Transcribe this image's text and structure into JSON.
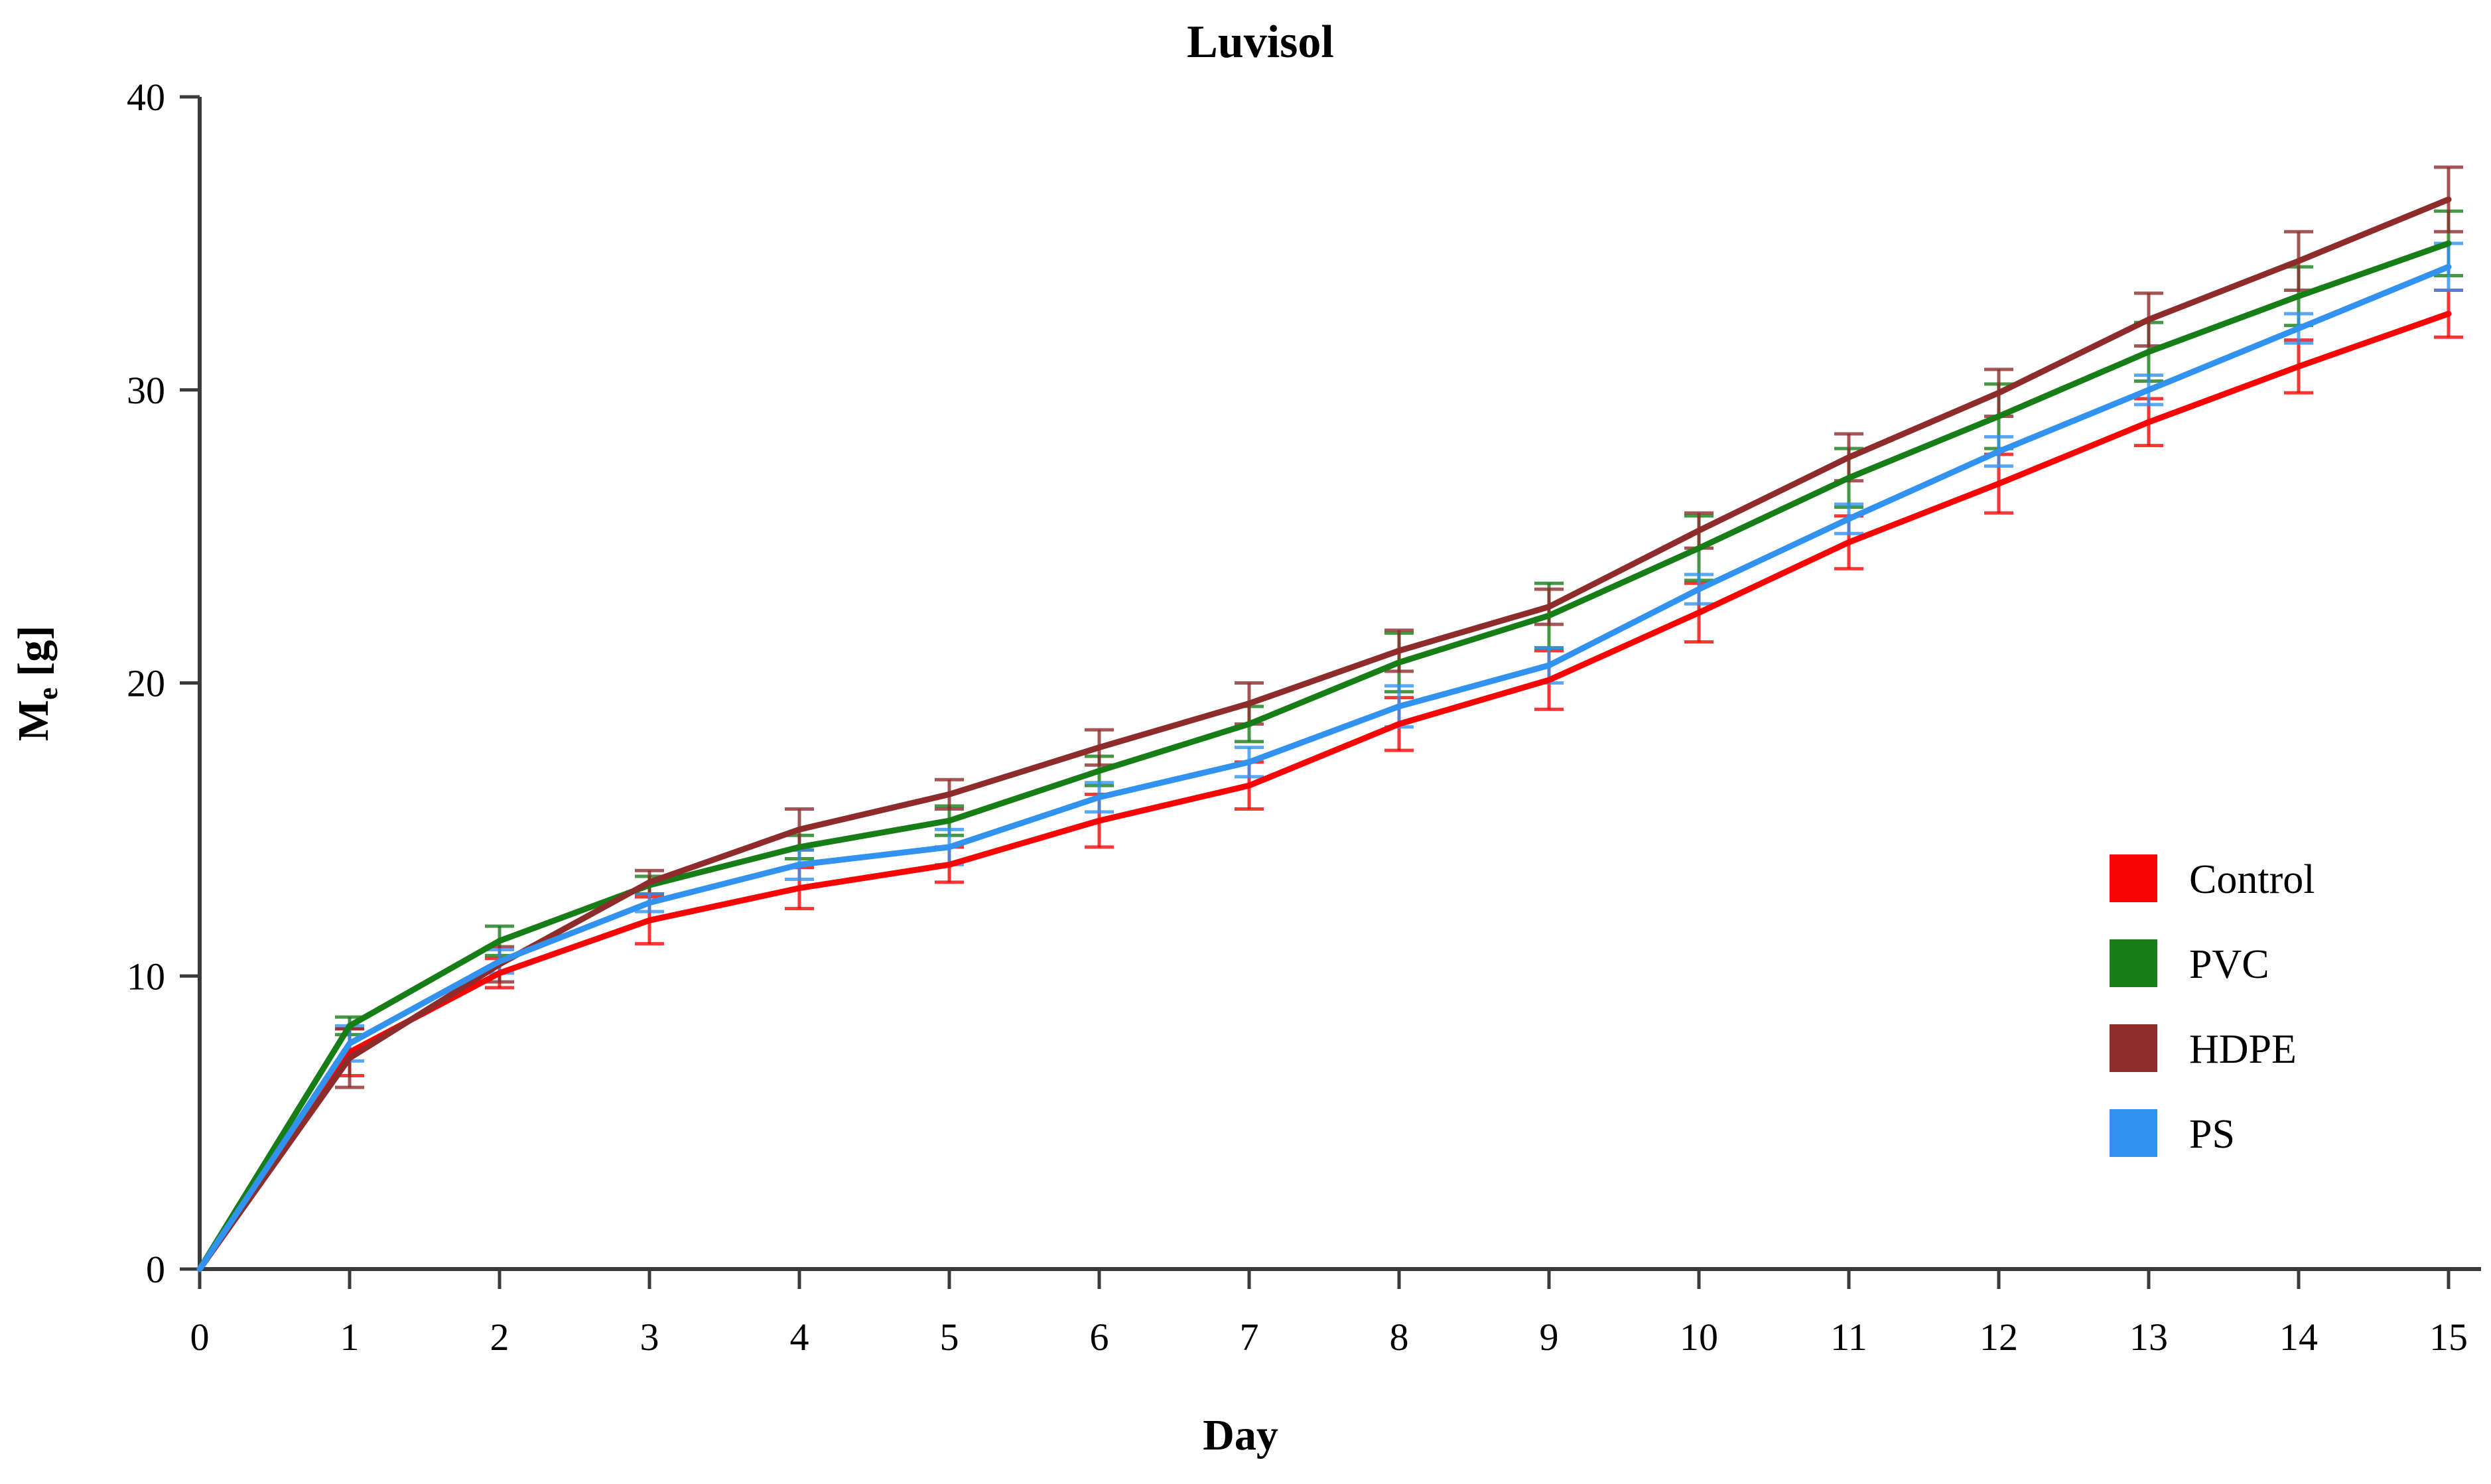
{
  "figure": {
    "title": "Luvisol",
    "background": "#ffffff",
    "axis_color": "#3a3a3a"
  },
  "chart_data": {
    "type": "line",
    "title": "Luvisol",
    "xlabel": "Day",
    "ylabel": "Me [g]",
    "ylabel_parts": [
      {
        "text": "M",
        "sub": false
      },
      {
        "text": "e",
        "sub": true
      },
      {
        "text": " [g]",
        "sub": false
      }
    ],
    "x": [
      0,
      1,
      2,
      3,
      4,
      5,
      6,
      7,
      8,
      9,
      10,
      11,
      12,
      13,
      14,
      15
    ],
    "xlim": [
      0,
      15
    ],
    "ylim": [
      0,
      40
    ],
    "xticks": [
      0,
      1,
      2,
      3,
      4,
      5,
      6,
      7,
      8,
      9,
      10,
      11,
      12,
      13,
      14,
      15
    ],
    "yticks": [
      0,
      10,
      20,
      30,
      40
    ],
    "grid": false,
    "error_bars": true,
    "legend_position": "right-lower",
    "series": [
      {
        "name": "Control",
        "color": "#f70505",
        "values": [
          0,
          7.4,
          10.1,
          11.9,
          13.0,
          13.8,
          15.3,
          16.5,
          18.6,
          20.1,
          22.4,
          24.8,
          26.8,
          28.9,
          30.8,
          32.6
        ],
        "errors": [
          0,
          0.8,
          0.5,
          0.8,
          0.7,
          0.6,
          0.9,
          0.8,
          0.9,
          1.0,
          1.0,
          0.9,
          1.0,
          0.8,
          0.9,
          0.8
        ]
      },
      {
        "name": "PVC",
        "color": "#177d17",
        "values": [
          0,
          8.3,
          11.2,
          13.1,
          14.4,
          15.3,
          17.0,
          18.6,
          20.7,
          22.3,
          24.6,
          27.0,
          29.1,
          31.3,
          33.2,
          35.0
        ],
        "errors": [
          0,
          0.3,
          0.5,
          0.3,
          0.4,
          0.5,
          0.5,
          0.6,
          1.0,
          1.1,
          1.1,
          1.0,
          1.1,
          1.0,
          1.0,
          1.1
        ]
      },
      {
        "name": "HDPE",
        "color": "#8e2c2c",
        "values": [
          0,
          7.2,
          10.4,
          13.2,
          15.0,
          16.2,
          17.8,
          19.3,
          21.1,
          22.6,
          25.2,
          27.7,
          29.9,
          32.4,
          34.4,
          36.5
        ],
        "errors": [
          0,
          1.0,
          0.6,
          0.4,
          0.7,
          0.5,
          0.6,
          0.7,
          0.7,
          0.6,
          0.6,
          0.8,
          0.8,
          0.9,
          1.0,
          1.1
        ]
      },
      {
        "name": "PS",
        "color": "#3292f0",
        "values": [
          0,
          7.7,
          10.5,
          12.5,
          13.8,
          14.4,
          16.1,
          17.3,
          19.2,
          20.6,
          23.2,
          25.6,
          27.9,
          30.0,
          32.1,
          34.2
        ],
        "errors": [
          0,
          0.6,
          0.4,
          0.3,
          0.5,
          0.6,
          0.5,
          0.5,
          0.7,
          0.6,
          0.5,
          0.5,
          0.5,
          0.5,
          0.5,
          0.8
        ]
      }
    ]
  }
}
